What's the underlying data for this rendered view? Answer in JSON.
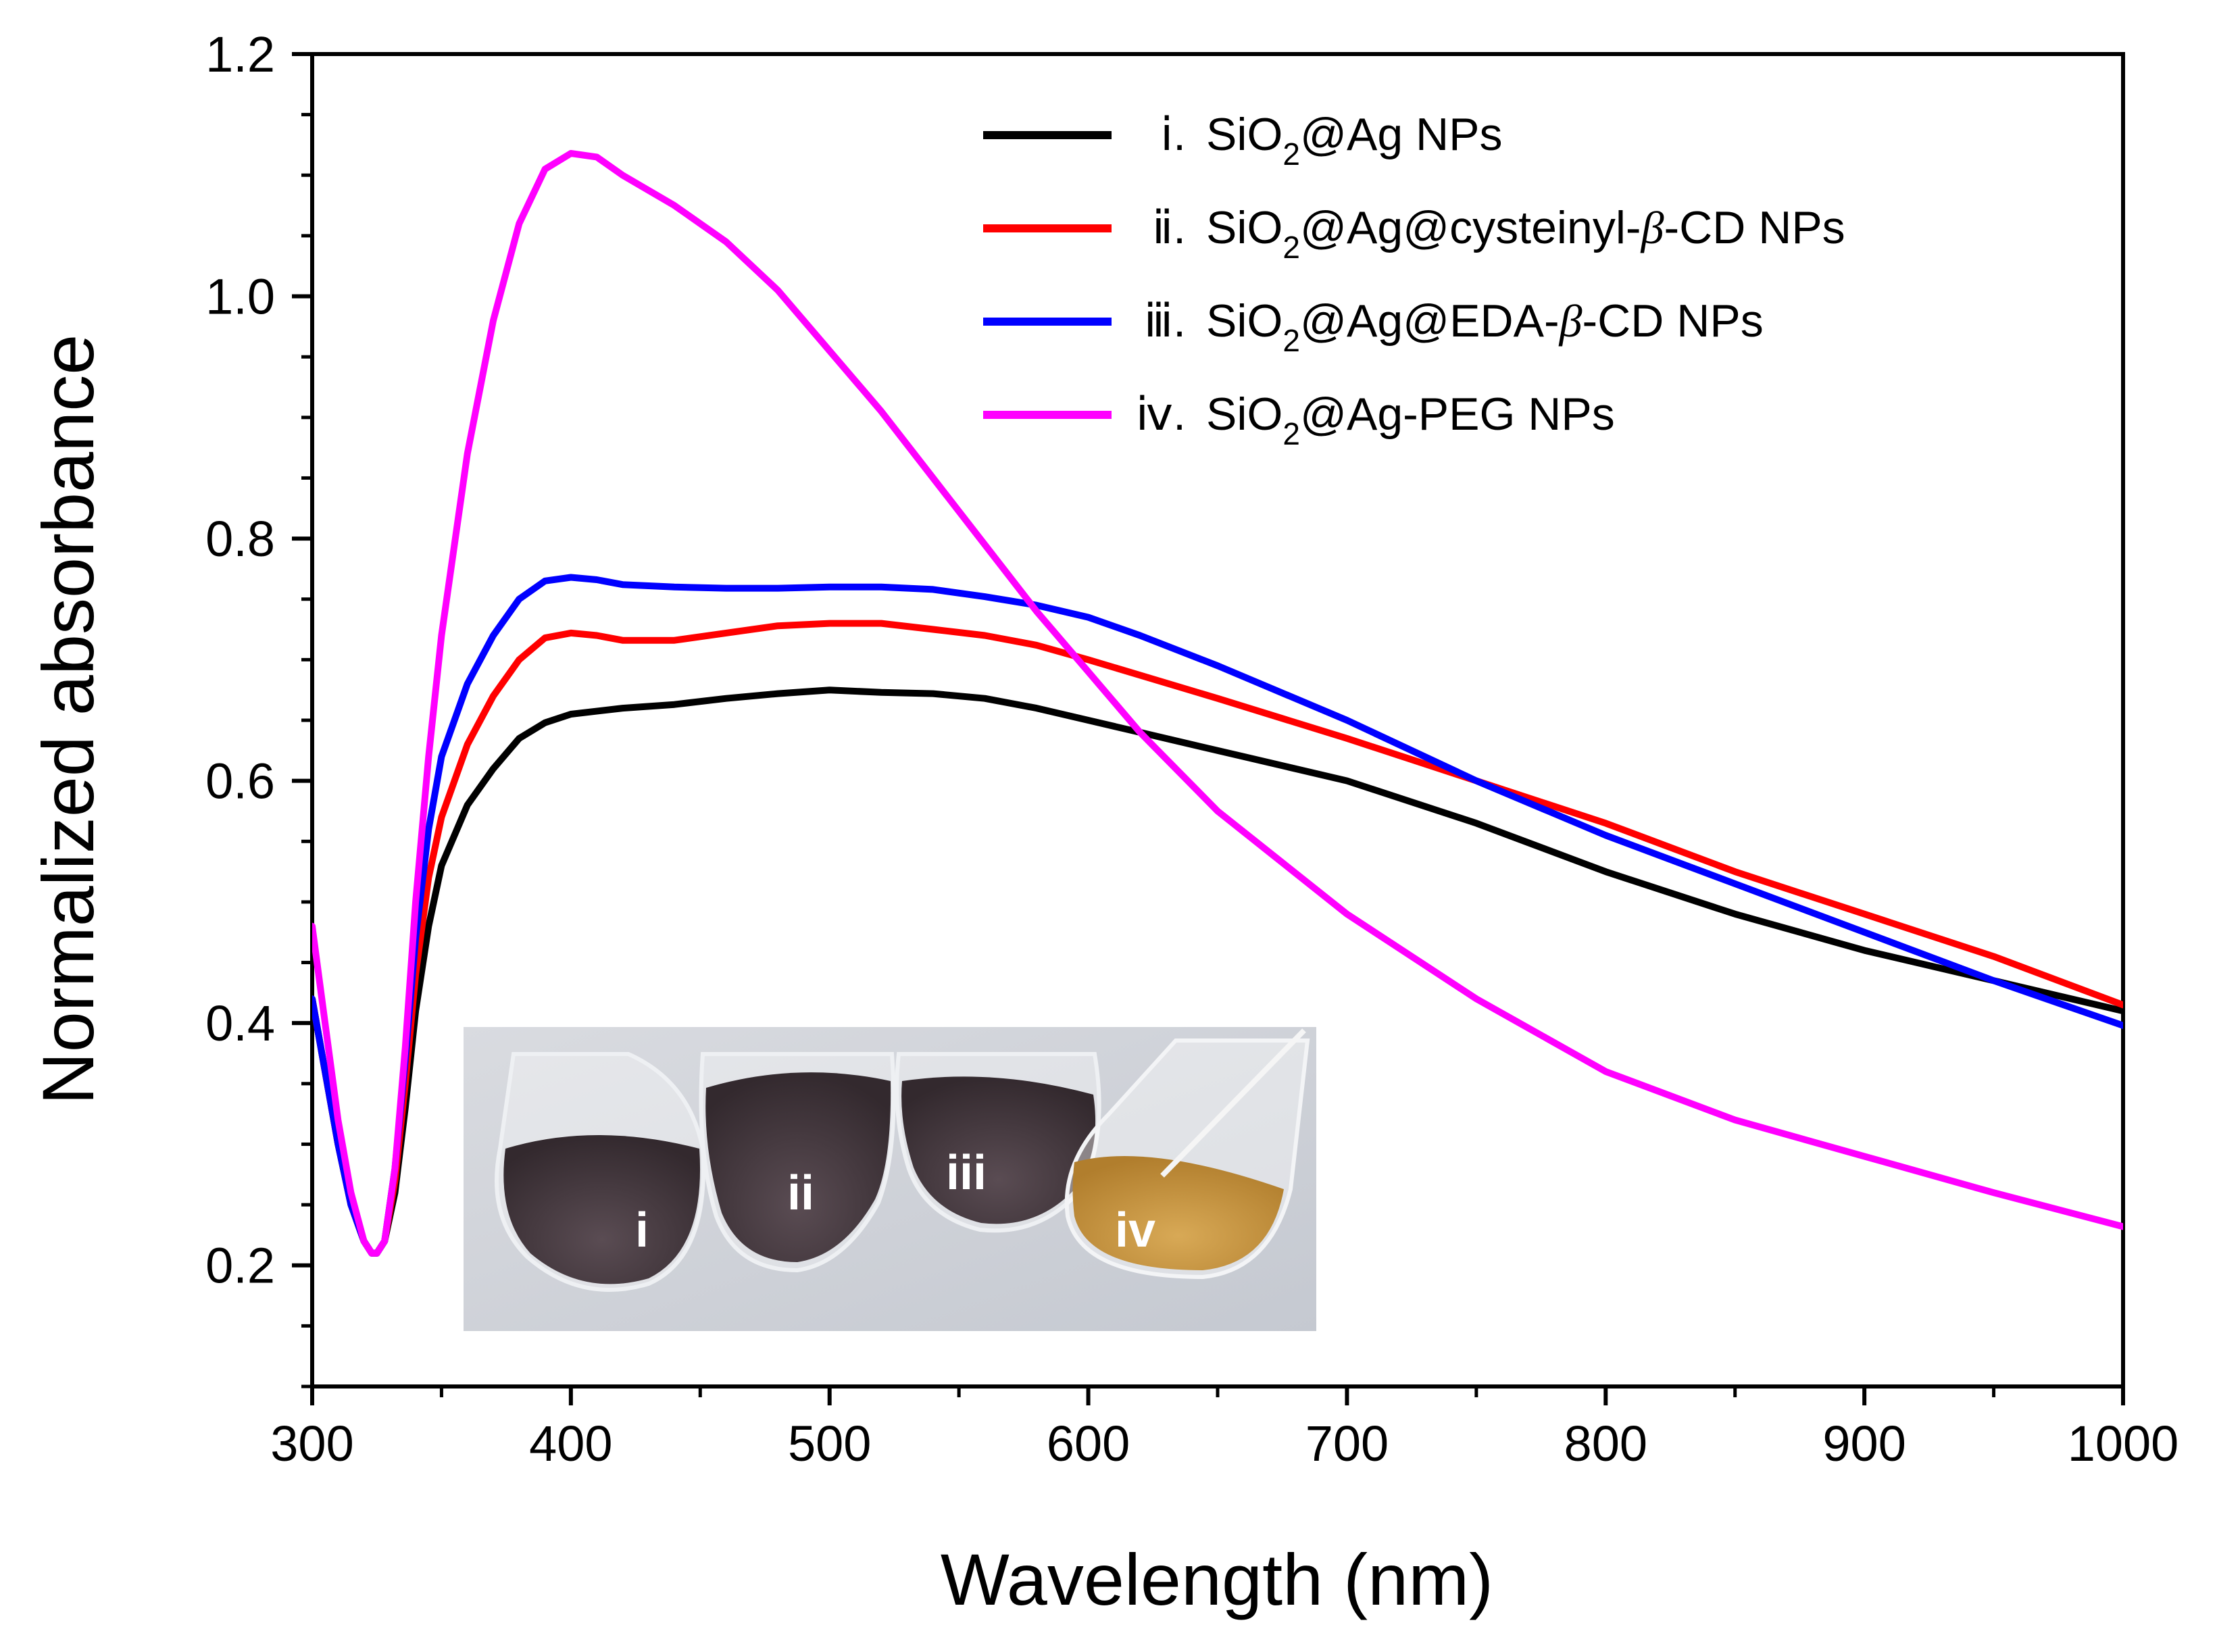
{
  "chart_data": {
    "type": "line",
    "title": "",
    "xlabel": "Wavelength (nm)",
    "ylabel": "Normalized absorbance",
    "xlim": [
      300,
      1000
    ],
    "ylim": [
      0.1,
      1.2
    ],
    "xticks": [
      300,
      400,
      500,
      600,
      700,
      800,
      900,
      1000
    ],
    "xtick_labels": [
      "300",
      "400",
      "500",
      "600",
      "700",
      "800",
      "900",
      "1000"
    ],
    "yticks": [
      0.2,
      0.4,
      0.6,
      0.8,
      1.0,
      1.2
    ],
    "ytick_labels": [
      "0.2",
      "0.4",
      "0.6",
      "0.8",
      "1.0",
      "1.2"
    ],
    "grid": false,
    "legend_position": "top-right",
    "series": [
      {
        "numeral": "ⅰ.",
        "name": "SiO2@Ag NPs",
        "legend_parts": [
          "SiO",
          "2",
          "@Ag NPs"
        ],
        "color": "#000000",
        "x": [
          300,
          305,
          310,
          315,
          320,
          323,
          325,
          328,
          332,
          336,
          340,
          345,
          350,
          360,
          370,
          380,
          390,
          400,
          420,
          440,
          460,
          480,
          500,
          520,
          540,
          560,
          580,
          600,
          620,
          640,
          660,
          700,
          750,
          800,
          850,
          900,
          950,
          1000
        ],
        "y": [
          0.42,
          0.36,
          0.3,
          0.25,
          0.22,
          0.21,
          0.21,
          0.22,
          0.26,
          0.33,
          0.41,
          0.48,
          0.53,
          0.58,
          0.61,
          0.635,
          0.648,
          0.655,
          0.66,
          0.663,
          0.668,
          0.672,
          0.675,
          0.673,
          0.672,
          0.668,
          0.66,
          0.65,
          0.64,
          0.63,
          0.62,
          0.6,
          0.565,
          0.525,
          0.49,
          0.46,
          0.435,
          0.41
        ]
      },
      {
        "numeral": "ⅱ.",
        "name": "SiO2@Ag@cysteinyl-β-CD NPs",
        "legend_parts": [
          "SiO",
          "2",
          "@Ag@cysteinyl-",
          "β",
          "-CD NPs"
        ],
        "color": "#ff0000",
        "x": [
          300,
          305,
          310,
          315,
          320,
          323,
          325,
          328,
          332,
          336,
          340,
          345,
          350,
          360,
          370,
          380,
          390,
          400,
          410,
          420,
          440,
          460,
          480,
          500,
          520,
          540,
          560,
          580,
          600,
          650,
          700,
          750,
          800,
          850,
          900,
          950,
          1000
        ],
        "y": [
          0.42,
          0.36,
          0.3,
          0.25,
          0.22,
          0.21,
          0.21,
          0.22,
          0.27,
          0.35,
          0.44,
          0.52,
          0.57,
          0.63,
          0.67,
          0.7,
          0.718,
          0.722,
          0.72,
          0.716,
          0.716,
          0.722,
          0.728,
          0.73,
          0.73,
          0.725,
          0.72,
          0.712,
          0.7,
          0.668,
          0.635,
          0.6,
          0.565,
          0.525,
          0.49,
          0.455,
          0.415
        ]
      },
      {
        "numeral": "ⅲ.",
        "name": "SiO2@Ag@EDA-β-CD NPs",
        "legend_parts": [
          "SiO",
          "2",
          "@Ag@EDA-",
          "β",
          "-CD NPs"
        ],
        "color": "#0000ff",
        "x": [
          300,
          305,
          310,
          315,
          320,
          323,
          325,
          328,
          332,
          336,
          340,
          345,
          350,
          360,
          370,
          380,
          390,
          400,
          410,
          420,
          440,
          460,
          480,
          500,
          520,
          540,
          560,
          580,
          600,
          620,
          650,
          700,
          750,
          800,
          850,
          900,
          950,
          1000
        ],
        "y": [
          0.42,
          0.36,
          0.3,
          0.25,
          0.22,
          0.21,
          0.21,
          0.22,
          0.28,
          0.37,
          0.47,
          0.56,
          0.62,
          0.68,
          0.72,
          0.75,
          0.765,
          0.768,
          0.766,
          0.762,
          0.76,
          0.759,
          0.759,
          0.76,
          0.76,
          0.758,
          0.752,
          0.745,
          0.735,
          0.72,
          0.695,
          0.65,
          0.6,
          0.555,
          0.515,
          0.475,
          0.435,
          0.398
        ]
      },
      {
        "numeral": "ⅳ.",
        "name": "SiO2@Ag-PEG NPs",
        "legend_parts": [
          "SiO",
          "2",
          "@Ag-PEG NPs"
        ],
        "color": "#ff00ff",
        "x": [
          300,
          305,
          310,
          315,
          320,
          323,
          325,
          328,
          332,
          336,
          340,
          345,
          350,
          360,
          370,
          380,
          390,
          400,
          410,
          420,
          440,
          460,
          480,
          500,
          520,
          540,
          560,
          580,
          600,
          620,
          650,
          700,
          750,
          800,
          850,
          900,
          950,
          1000
        ],
        "y": [
          0.48,
          0.4,
          0.32,
          0.26,
          0.22,
          0.21,
          0.21,
          0.22,
          0.28,
          0.38,
          0.5,
          0.62,
          0.72,
          0.87,
          0.98,
          1.06,
          1.105,
          1.118,
          1.115,
          1.1,
          1.075,
          1.045,
          1.005,
          0.955,
          0.905,
          0.85,
          0.795,
          0.74,
          0.69,
          0.64,
          0.575,
          0.49,
          0.42,
          0.36,
          0.32,
          0.29,
          0.26,
          0.232
        ]
      }
    ],
    "inset": {
      "description_hidden": true,
      "tube_labels": [
        "i",
        "ii",
        "iii",
        "iv"
      ]
    }
  },
  "colors": {
    "axis": "#000000",
    "inset_background": "#d4d7dd",
    "dark_tube_fill": "#4b3f44",
    "yellow_tube_fill": "#c99a45"
  }
}
